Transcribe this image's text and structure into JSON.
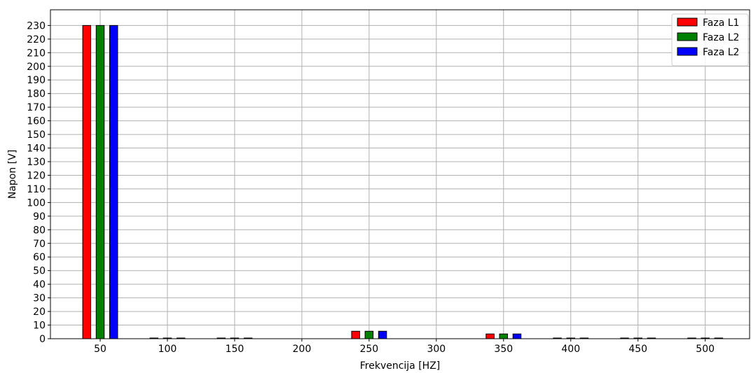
{
  "chart_data": {
    "type": "bar",
    "xlabel": "Frekvencija [HZ]",
    "ylabel": "Napon [V]",
    "xlim": [
      13,
      533
    ],
    "ylim": [
      0,
      230
    ],
    "x_ticks": [
      50,
      100,
      150,
      200,
      250,
      300,
      350,
      400,
      450,
      500
    ],
    "y_ticks": [
      0,
      10,
      20,
      30,
      40,
      50,
      60,
      70,
      80,
      90,
      100,
      110,
      120,
      130,
      140,
      150,
      160,
      170,
      180,
      190,
      200,
      210,
      220,
      230
    ],
    "grid": true,
    "legend_position": "top-right",
    "bar_offset": 10,
    "bar_width": 6,
    "categories": [
      50,
      100,
      150,
      250,
      350,
      400,
      450,
      500
    ],
    "series": [
      {
        "name": "Faza L1",
        "color": "#ff0000",
        "values": [
          230,
          0.5,
          0.5,
          5.5,
          3.5,
          0.5,
          0.5,
          0.5
        ]
      },
      {
        "name": "Faza L2",
        "color": "#008000",
        "values": [
          230,
          0.5,
          0.5,
          5.5,
          3.5,
          0.5,
          0.5,
          0.5
        ]
      },
      {
        "name": "Faza L2",
        "color": "#0000ff",
        "values": [
          230,
          0.5,
          0.5,
          5.5,
          3.5,
          0.5,
          0.5,
          0.5
        ]
      }
    ]
  }
}
